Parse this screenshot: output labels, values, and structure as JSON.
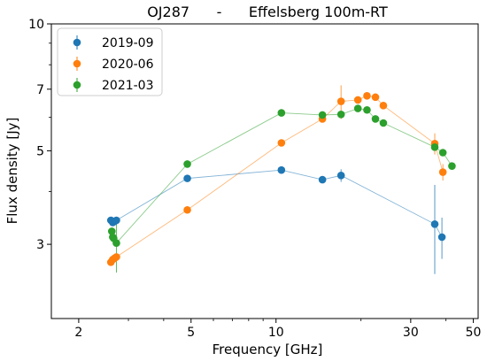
{
  "chart_data": {
    "type": "scatter",
    "title": "OJ287      -      Effelsberg 100m-RT",
    "xlabel": "Frequency [GHz]",
    "ylabel": "Flux density [Jy]",
    "xscale": "log",
    "yscale": "log",
    "xlim": [
      1.6,
      52
    ],
    "ylim": [
      2.0,
      10.0
    ],
    "xticks": [
      2,
      5,
      10,
      30,
      50
    ],
    "xtick_labels": [
      "2",
      "5",
      "10",
      "30",
      "50"
    ],
    "yticks": [
      3,
      5,
      7,
      10
    ],
    "ytick_labels": [
      "3",
      "5",
      "7",
      "10"
    ],
    "grid": false,
    "legend_position": "top-left",
    "series": [
      {
        "name": "2019-09",
        "color": "#1f77b4",
        "points": [
          {
            "x": 2.6,
            "y": 3.42,
            "err": 0.05
          },
          {
            "x": 2.64,
            "y": 3.38,
            "err": 0.05
          },
          {
            "x": 2.68,
            "y": 3.4,
            "err": 0.05
          },
          {
            "x": 2.72,
            "y": 3.42,
            "err": 0.05
          },
          {
            "x": 4.85,
            "y": 4.3,
            "err": 0.05
          },
          {
            "x": 10.45,
            "y": 4.5,
            "err": 0.05
          },
          {
            "x": 14.6,
            "y": 4.27,
            "err": 0.05
          },
          {
            "x": 17.0,
            "y": 4.37,
            "err": 0.15
          },
          {
            "x": 36.5,
            "y": 3.35,
            "err": 0.8
          },
          {
            "x": 38.7,
            "y": 3.12,
            "err": 0.35
          }
        ]
      },
      {
        "name": "2020-06",
        "color": "#ff7f0e",
        "points": [
          {
            "x": 2.6,
            "y": 2.72,
            "err": 0.05
          },
          {
            "x": 2.64,
            "y": 2.76,
            "err": 0.05
          },
          {
            "x": 2.68,
            "y": 2.78,
            "err": 0.05
          },
          {
            "x": 2.72,
            "y": 2.8,
            "err": 0.05
          },
          {
            "x": 4.85,
            "y": 3.62,
            "err": 0.05
          },
          {
            "x": 10.45,
            "y": 5.22,
            "err": 0.05
          },
          {
            "x": 14.6,
            "y": 5.95,
            "err": 0.05
          },
          {
            "x": 17.0,
            "y": 6.55,
            "err": 0.6
          },
          {
            "x": 19.5,
            "y": 6.6,
            "err": 0.05
          },
          {
            "x": 21.0,
            "y": 6.75,
            "err": 0.05
          },
          {
            "x": 22.5,
            "y": 6.7,
            "err": 0.05
          },
          {
            "x": 24.0,
            "y": 6.4,
            "err": 0.05
          },
          {
            "x": 36.5,
            "y": 5.2,
            "err": 0.3
          },
          {
            "x": 39.0,
            "y": 4.45,
            "err": 0.2
          }
        ]
      },
      {
        "name": "2021-03",
        "color": "#2ca02c",
        "points": [
          {
            "x": 2.62,
            "y": 3.22,
            "err": 0.05
          },
          {
            "x": 2.64,
            "y": 3.12,
            "err": 0.05
          },
          {
            "x": 2.66,
            "y": 3.1,
            "err": 0.05
          },
          {
            "x": 2.72,
            "y": 3.02,
            "err": 0.45
          },
          {
            "x": 4.85,
            "y": 4.65,
            "err": 0.05
          },
          {
            "x": 10.45,
            "y": 6.15,
            "err": 0.05
          },
          {
            "x": 14.6,
            "y": 6.08,
            "err": 0.05
          },
          {
            "x": 17.0,
            "y": 6.1,
            "err": 0.05
          },
          {
            "x": 19.5,
            "y": 6.3,
            "err": 0.05
          },
          {
            "x": 21.0,
            "y": 6.25,
            "err": 0.05
          },
          {
            "x": 22.5,
            "y": 5.95,
            "err": 0.05
          },
          {
            "x": 24.0,
            "y": 5.82,
            "err": 0.05
          },
          {
            "x": 36.5,
            "y": 5.1,
            "err": 0.05
          },
          {
            "x": 39.0,
            "y": 4.95,
            "err": 0.05
          },
          {
            "x": 42.0,
            "y": 4.6,
            "err": 0.05
          }
        ]
      }
    ]
  }
}
